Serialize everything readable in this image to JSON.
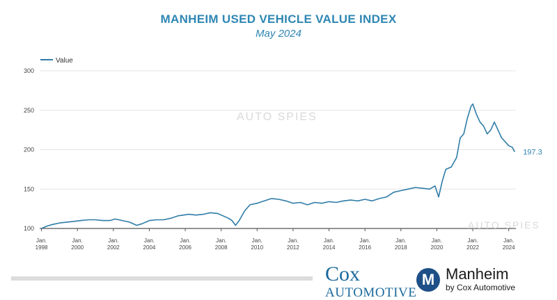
{
  "header": {
    "title": "MANHEIM USED VEHICLE VALUE INDEX",
    "subtitle": "May 2024"
  },
  "watermarks": [
    "AUTO SPIES",
    "AUTO SPIES"
  ],
  "logos": {
    "cox_line1": "Cox",
    "cox_line2": "AUTOMOTIVE",
    "manheim_badge": "M",
    "manheim_line1": "Manheim",
    "manheim_line2": "by Cox Automotive"
  },
  "colors": {
    "line": "#2e7ca6",
    "title": "#2e86b3",
    "grid": "#e4e4e4"
  },
  "chart_data": {
    "type": "line",
    "title": "MANHEIM USED VEHICLE VALUE INDEX",
    "subtitle": "May 2024",
    "legend": "top-left",
    "grid": true,
    "ylim": [
      100,
      300
    ],
    "yticks": [
      100,
      150,
      200,
      250,
      300
    ],
    "xlim": [
      1997.9,
      2024.4
    ],
    "xticks": [
      {
        "x": 1998,
        "line1": "Jan.",
        "line2": "1998"
      },
      {
        "x": 2000,
        "line1": "Jan.",
        "line2": "2000"
      },
      {
        "x": 2002,
        "line1": "Jan.",
        "line2": "2002"
      },
      {
        "x": 2004,
        "line1": "Jan.",
        "line2": "2004"
      },
      {
        "x": 2006,
        "line1": "Jan.",
        "line2": "2006"
      },
      {
        "x": 2008,
        "line1": "Jan.",
        "line2": "2008"
      },
      {
        "x": 2010,
        "line1": "Jan.",
        "line2": "2010"
      },
      {
        "x": 2012,
        "line1": "Jan.",
        "line2": "2012"
      },
      {
        "x": 2014,
        "line1": "Jan.",
        "line2": "2014"
      },
      {
        "x": 2016,
        "line1": "Jan.",
        "line2": "2016"
      },
      {
        "x": 2018,
        "line1": "Jan.",
        "line2": "2018"
      },
      {
        "x": 2020,
        "line1": "Jan.",
        "line2": "2020"
      },
      {
        "x": 2022,
        "line1": "Jan.",
        "line2": "2022"
      },
      {
        "x": 2024,
        "line1": "Jan.",
        "line2": "2024"
      }
    ],
    "series": [
      {
        "name": "Value",
        "end_label": "197.3",
        "x": [
          1998.0,
          1998.3,
          1998.6,
          1999.0,
          1999.4,
          1999.8,
          2000.2,
          2000.6,
          2001.0,
          2001.4,
          2001.8,
          2002.1,
          2002.5,
          2002.9,
          2003.3,
          2003.6,
          2004.0,
          2004.4,
          2004.8,
          2005.2,
          2005.6,
          2005.9,
          2006.2,
          2006.6,
          2007.0,
          2007.4,
          2007.8,
          2008.1,
          2008.4,
          2008.6,
          2008.8,
          2009.0,
          2009.3,
          2009.6,
          2010.0,
          2010.4,
          2010.8,
          2011.2,
          2011.6,
          2012.0,
          2012.4,
          2012.8,
          2013.2,
          2013.6,
          2014.0,
          2014.4,
          2014.8,
          2015.2,
          2015.6,
          2016.0,
          2016.4,
          2016.8,
          2017.2,
          2017.6,
          2018.0,
          2018.4,
          2018.8,
          2019.2,
          2019.6,
          2019.9,
          2020.1,
          2020.3,
          2020.5,
          2020.8,
          2021.1,
          2021.3,
          2021.5,
          2021.7,
          2021.9,
          2022.0,
          2022.2,
          2022.4,
          2022.6,
          2022.8,
          2023.0,
          2023.2,
          2023.4,
          2023.6,
          2023.8,
          2024.0,
          2024.2,
          2024.33
        ],
        "y": [
          100,
          103,
          105,
          107,
          108,
          109,
          110,
          111,
          111,
          110,
          110,
          112,
          110,
          108,
          104,
          106,
          110,
          111,
          111,
          113,
          116,
          117,
          118,
          117,
          118,
          120,
          119,
          116,
          113,
          110,
          104,
          110,
          122,
          130,
          132,
          135,
          138,
          137,
          135,
          132,
          133,
          130,
          133,
          132,
          134,
          133,
          135,
          136,
          135,
          137,
          135,
          138,
          140,
          146,
          148,
          150,
          152,
          151,
          150,
          154,
          140,
          160,
          175,
          178,
          190,
          215,
          220,
          240,
          255,
          258,
          245,
          235,
          230,
          220,
          225,
          235,
          225,
          215,
          210,
          205,
          203,
          197.3
        ]
      }
    ]
  }
}
